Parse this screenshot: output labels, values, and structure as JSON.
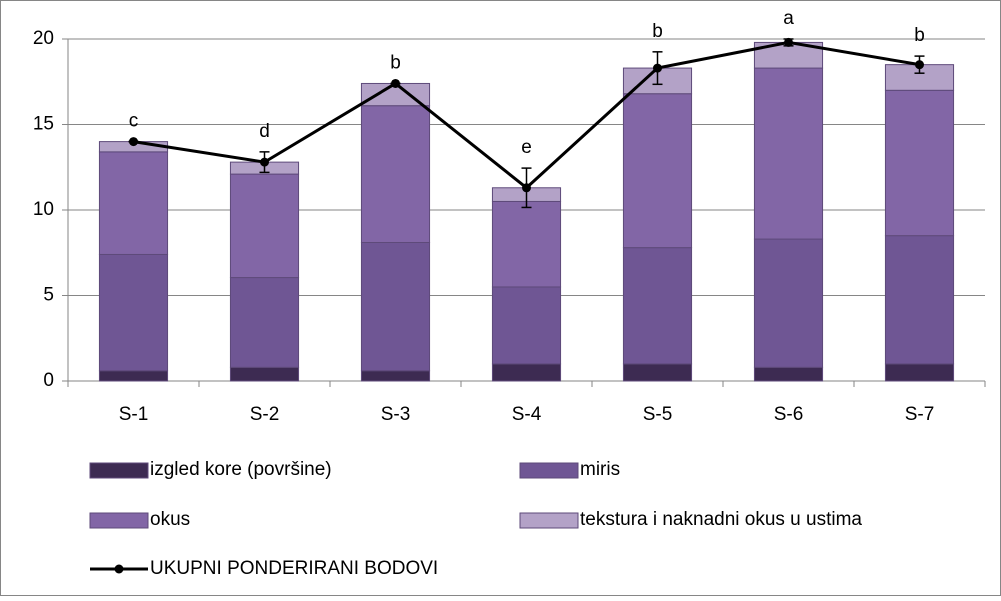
{
  "chart_data": {
    "type": "bar",
    "stacked": true,
    "categories": [
      "S-1",
      "S-2",
      "S-3",
      "S-4",
      "S-5",
      "S-6",
      "S-7"
    ],
    "series": [
      {
        "name": "izgled kore (površine)",
        "color": "#3d2b52",
        "values": [
          0.6,
          0.8,
          0.6,
          1.0,
          1.0,
          0.8,
          1.0
        ]
      },
      {
        "name": "miris",
        "color": "#6f5694",
        "values": [
          6.8,
          5.25,
          7.5,
          4.5,
          6.8,
          7.5,
          7.5
        ]
      },
      {
        "name": "okus",
        "color": "#8266a6",
        "values": [
          6.0,
          6.05,
          8.0,
          5.0,
          9.0,
          10.0,
          8.5
        ]
      },
      {
        "name": "tekstura i naknadni okus u ustima",
        "color": "#b3a2c7",
        "values": [
          0.6,
          0.7,
          1.3,
          0.8,
          1.5,
          1.5,
          1.5
        ]
      }
    ],
    "line": {
      "name": "UKUPNI PONDERIRANI BODOVI",
      "color": "#000000",
      "values": [
        14.0,
        12.8,
        17.4,
        11.3,
        18.3,
        19.8,
        18.5
      ],
      "errors": [
        0,
        0.6,
        0,
        1.15,
        0.95,
        0.2,
        0.5
      ],
      "annotations": [
        "c",
        "d",
        "b",
        "e",
        "b",
        "a",
        "b"
      ]
    },
    "ylim": [
      0,
      20
    ],
    "yticks": [
      0,
      5,
      10,
      15,
      20
    ],
    "grid": true
  }
}
